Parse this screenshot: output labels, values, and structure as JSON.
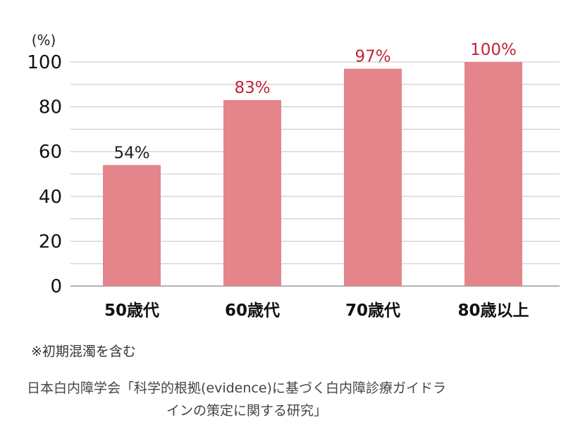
{
  "chart_data": {
    "type": "bar",
    "categories": [
      "50歳代",
      "60歳代",
      "70歳代",
      "80歳以上"
    ],
    "values": [
      54,
      83,
      97,
      100
    ],
    "data_labels": [
      "54%",
      "83%",
      "97%",
      "100%"
    ],
    "y_unit_label": "(%)",
    "yticks": [
      "0",
      "20",
      "40",
      "60",
      "80",
      "100"
    ],
    "ylim": [
      0,
      100
    ],
    "grid": true,
    "bar_color": "#E4848B",
    "label_colors": [
      "#222222",
      "#C0263A",
      "#C0263A",
      "#C0263A"
    ]
  },
  "note": "※初期混濁を含む",
  "source_line1": "日本白内障学会「科学的根拠(evidence)に基づく白内障診療ガイドラ",
  "source_line2": "インの策定に関する研究」"
}
